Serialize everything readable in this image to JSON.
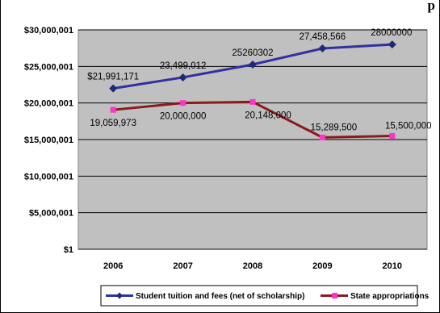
{
  "page_title_fragment": "p",
  "chart_data": {
    "type": "line",
    "categories": [
      "2006",
      "2007",
      "2008",
      "2009",
      "2010"
    ],
    "series": [
      {
        "name": "Student tuition and fees (net of scholarship)",
        "values": [
          21991171,
          23499012,
          25260302,
          27458566,
          28000000
        ],
        "labels": [
          "$21,991,171",
          "23,499,012",
          "25260302",
          "27,458,566",
          "28000000"
        ],
        "color": "#3030a0",
        "marker_color": "#1e2a78",
        "marker": "diamond"
      },
      {
        "name": "State appropriations",
        "values": [
          19059973,
          20000000,
          20148000,
          15289500,
          15500000
        ],
        "labels": [
          "19,059,973",
          "20,000,000",
          "20,148,000",
          "15,289,500",
          "15,500,000"
        ],
        "color": "#8b1a1a",
        "marker_color": "#ff33cc",
        "marker": "square"
      }
    ],
    "y_ticks": [
      {
        "value": 1,
        "label": "$1"
      },
      {
        "value": 5000001,
        "label": "$5,000,001"
      },
      {
        "value": 10000001,
        "label": "$10,000,001"
      },
      {
        "value": 15000001,
        "label": "$15,000,001"
      },
      {
        "value": 20000001,
        "label": "$20,000,001"
      },
      {
        "value": 25000001,
        "label": "$25,000,001"
      },
      {
        "value": 30000001,
        "label": "$30,000,001"
      }
    ],
    "ylim": [
      1,
      30000001
    ],
    "grid": true,
    "legend_position": "bottom",
    "colors": {
      "plot_background": "#c0c0c0",
      "gridline": "#000000"
    }
  }
}
